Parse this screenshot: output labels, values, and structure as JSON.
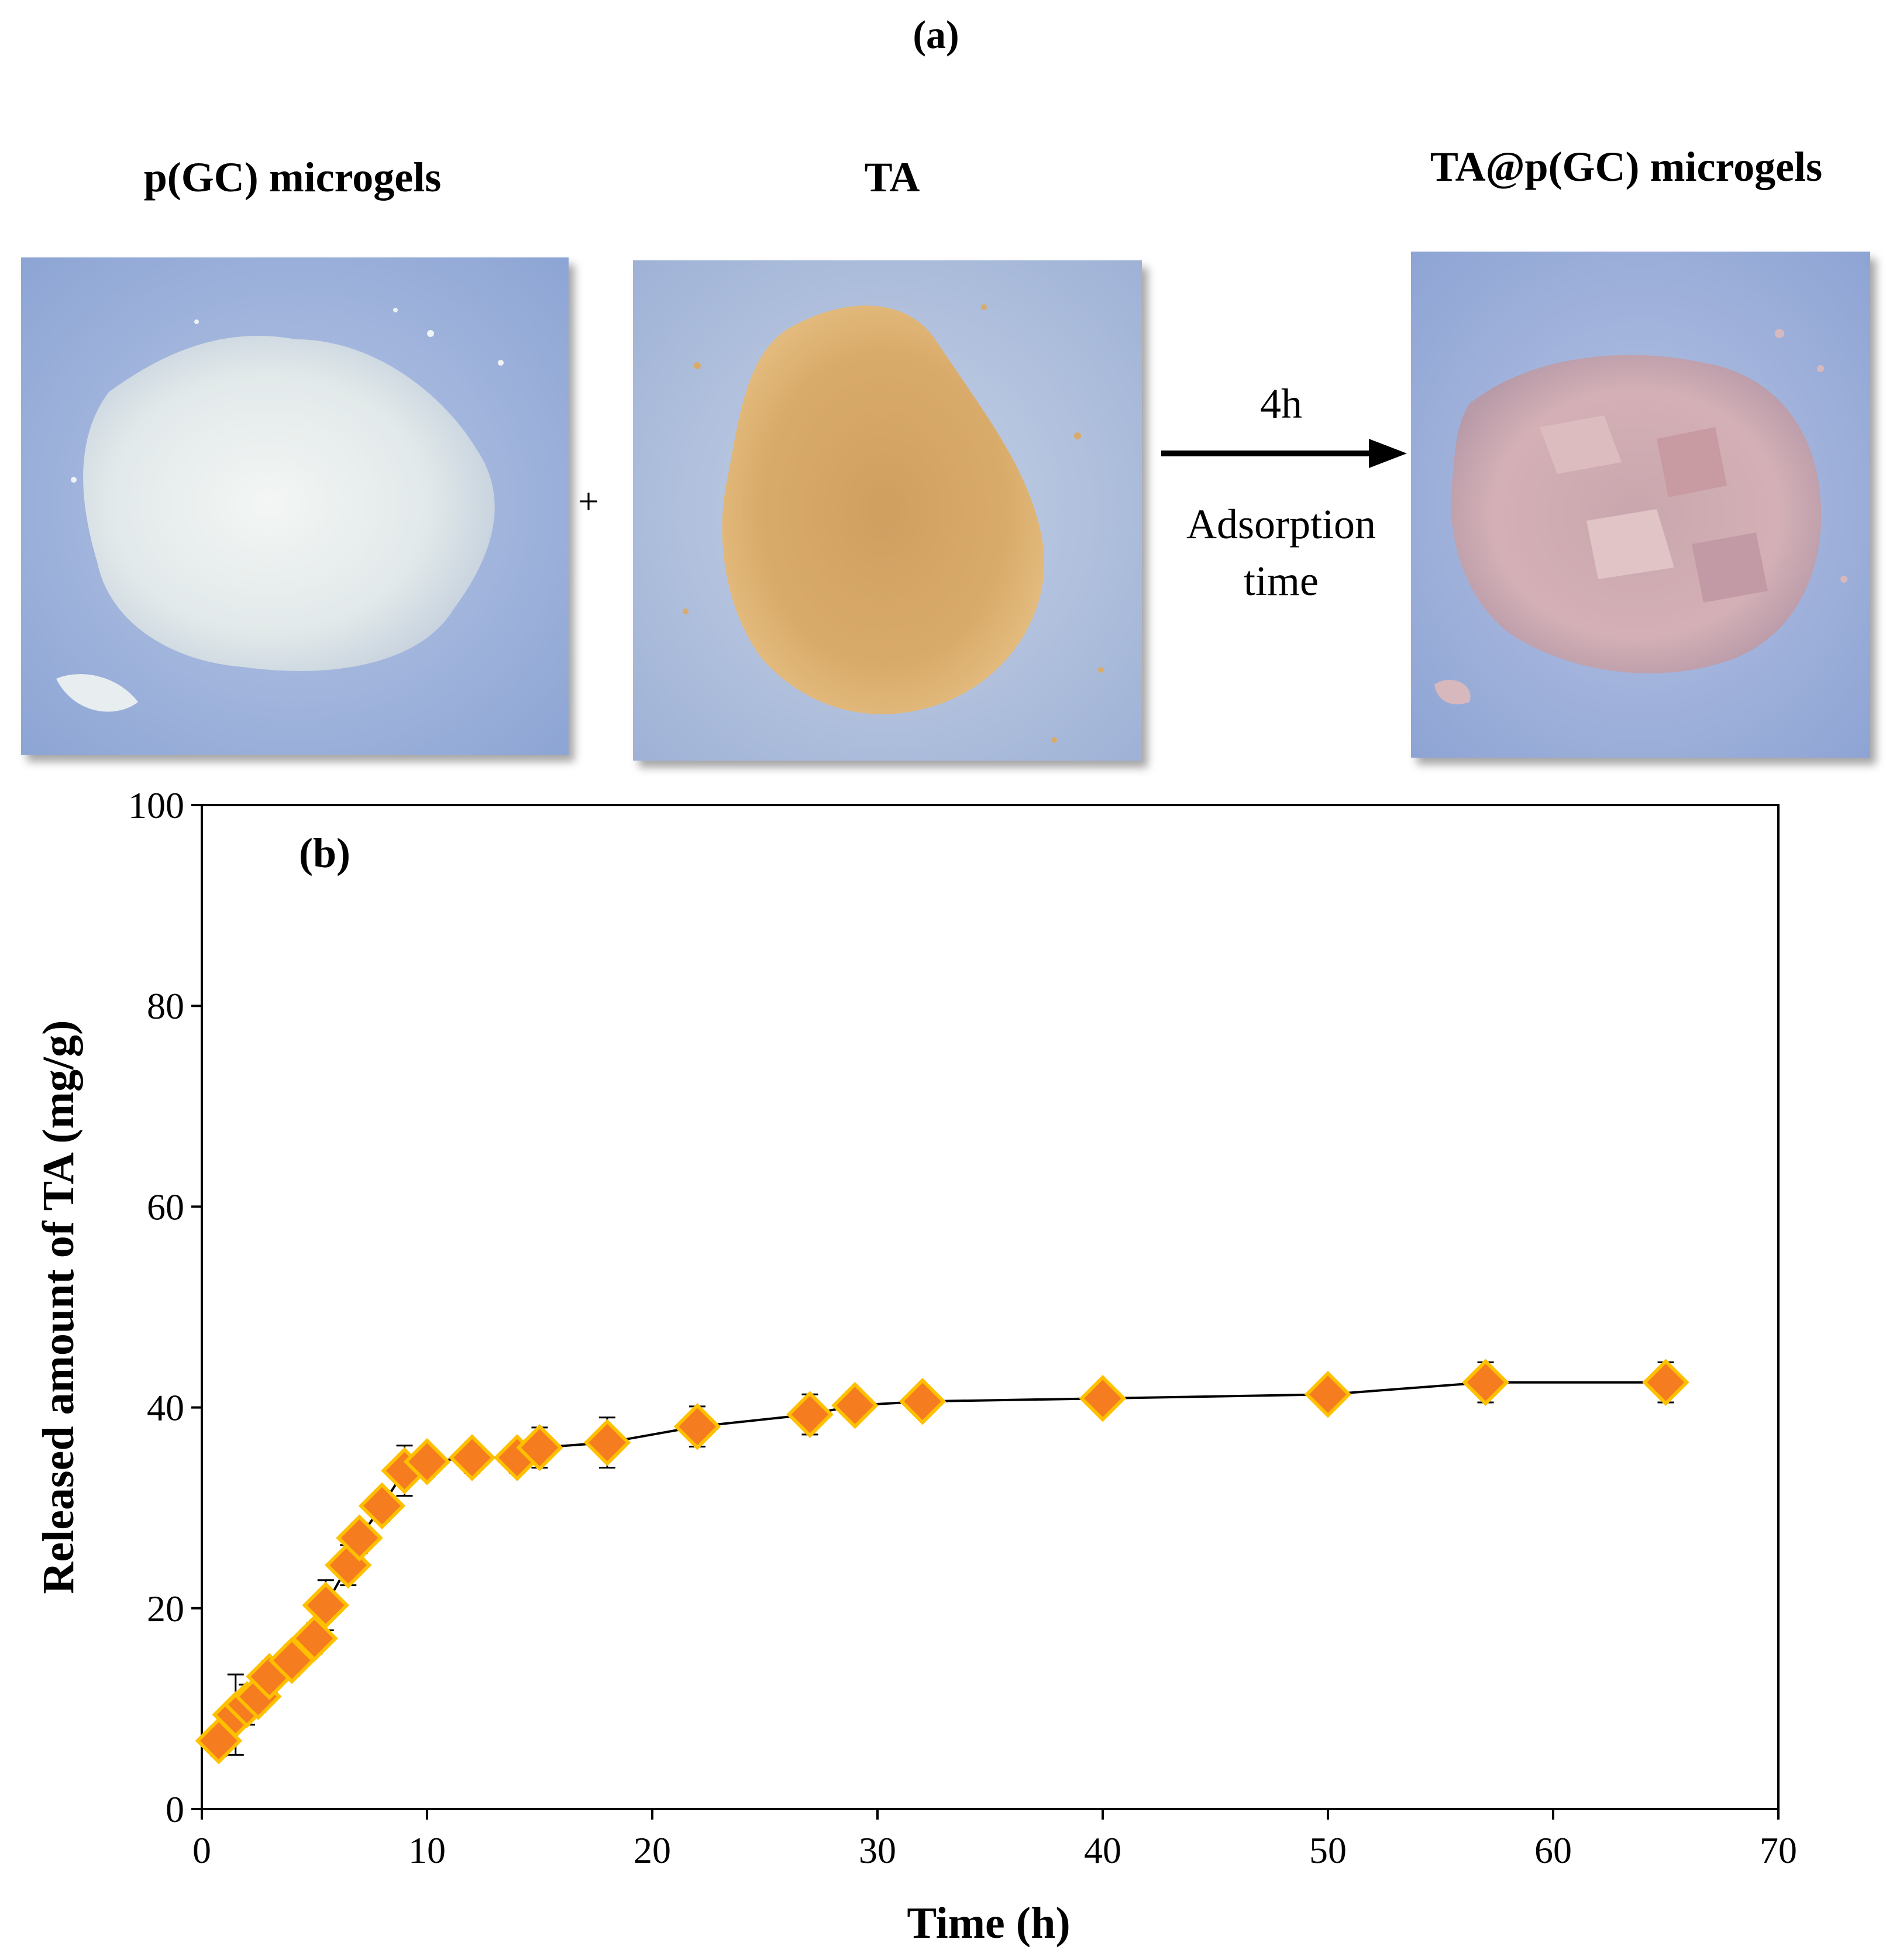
{
  "panel_a": {
    "label": "(a)",
    "photos": [
      {
        "title": "p(GC) microgels",
        "description": "white powder"
      },
      {
        "title": "TA",
        "description": "yellow-tan granular powder"
      },
      {
        "title": "TA@p(GC) microgels",
        "description": "pinkish flakes"
      }
    ],
    "plus_sign": "+",
    "arrow": {
      "top_text": "4h",
      "bottom_text": "Adsorption time"
    }
  },
  "colors": {
    "marker_fill": "#F57C1F",
    "marker_edge": "#FFC000",
    "line": "#000000",
    "photo_bg": "#8fa8d6"
  },
  "chart_data": {
    "type": "scatter",
    "panel_label": "(b)",
    "xlabel": "Time (h)",
    "ylabel": "Released amount of TA (mg/g)",
    "xlim": [
      0,
      70
    ],
    "ylim": [
      0,
      100
    ],
    "xticks": [
      0,
      10,
      20,
      30,
      40,
      50,
      60,
      70
    ],
    "yticks": [
      0,
      20,
      40,
      60,
      80,
      100
    ],
    "grid": false,
    "series": [
      {
        "marker": "diamond",
        "line": true,
        "x": [
          0.75,
          1.5,
          2,
          2.5,
          3,
          4,
          5,
          5.5,
          6.5,
          7,
          8,
          9,
          10,
          12,
          14,
          15,
          18,
          22,
          27,
          29,
          32,
          40,
          50,
          57,
          65
        ],
        "y": [
          6.8,
          9.4,
          10.4,
          11.2,
          13.2,
          14.8,
          17.0,
          20.3,
          24.3,
          27.0,
          30.2,
          33.7,
          34.6,
          35.0,
          35.0,
          36.0,
          36.5,
          38.1,
          39.3,
          40.2,
          40.6,
          40.9,
          41.3,
          42.5,
          42.5
        ],
        "error": [
          1.5,
          4.0,
          2.0,
          1.5,
          1.5,
          1.5,
          1.5,
          2.5,
          2.0,
          1.5,
          1.5,
          2.5,
          1.5,
          1.5,
          1.5,
          2.0,
          2.5,
          2.0,
          2.0,
          1.0,
          1.0,
          1.0,
          1.0,
          2.0,
          2.0
        ]
      }
    ]
  }
}
